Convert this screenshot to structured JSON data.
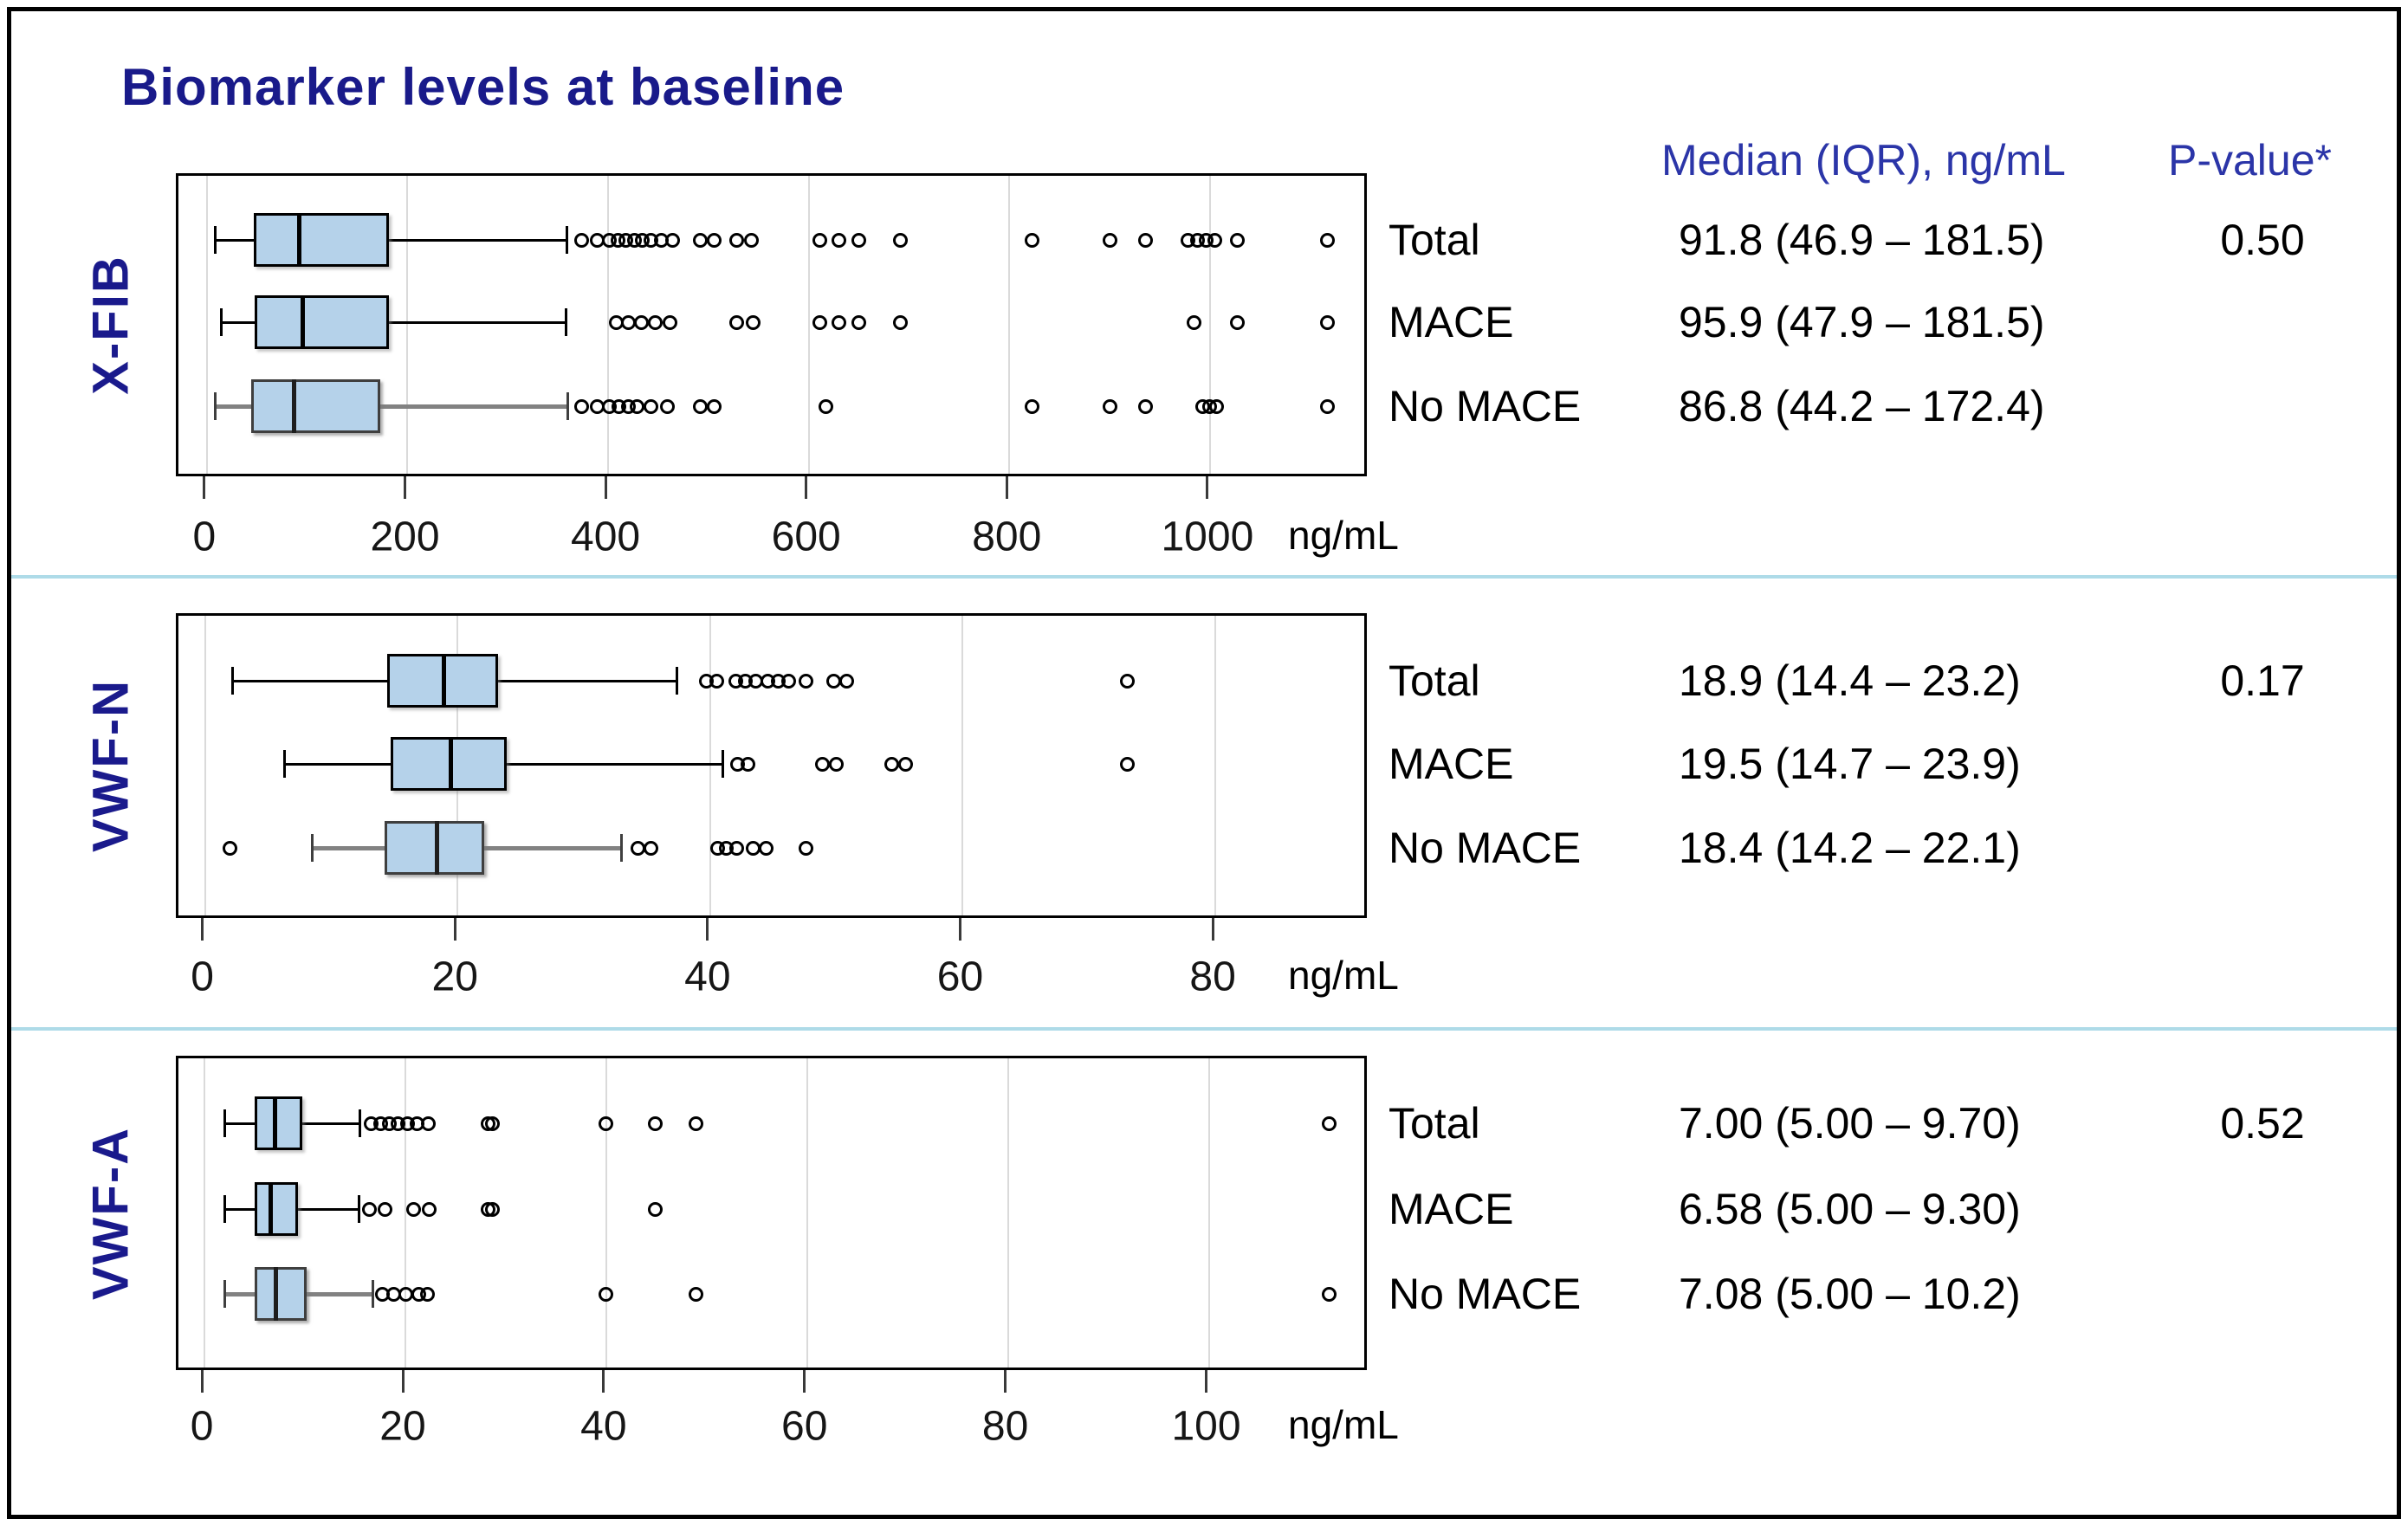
{
  "title": "Biomarker levels at baseline",
  "columns": {
    "median_header": "Median (IQR), ng/mL",
    "pvalue_header": "P-value*"
  },
  "colors": {
    "title_navy": "#191a8a",
    "header_blue": "#2b35a8",
    "box_fill": "#b5d2ea",
    "gray_series": "#828282",
    "gridline": "#dadada",
    "separator_blue": "#aedbe8"
  },
  "chart_data": [
    {
      "type": "boxplot",
      "orientation": "horizontal",
      "label": "X-FIB",
      "unit": "ng/mL",
      "pvalue": "0.50",
      "axis": {
        "min": -28.4,
        "max": 1159,
        "ticks": [
          0,
          200,
          400,
          600,
          800,
          1000
        ],
        "grid": true
      },
      "rows": [
        {
          "group": "Total",
          "median_iqr": "91.8 (46.9 – 181.5)",
          "stats": {
            "whisker_low": 8,
            "q1": 46.9,
            "median": 91.8,
            "q3": 181.5,
            "whisker_high": 359
          },
          "outliers": [
            374,
            389,
            401,
            410,
            418,
            426,
            434,
            443,
            453,
            464,
            492,
            506,
            528,
            543,
            611,
            630,
            650,
            691,
            823,
            900,
            936,
            978,
            988,
            996,
            1005,
            1027,
            1117
          ],
          "style": "black"
        },
        {
          "group": "MACE",
          "median_iqr": "95.9 (47.9 – 181.5)",
          "stats": {
            "whisker_low": 14,
            "q1": 47.9,
            "median": 95.9,
            "q3": 181.5,
            "whisker_high": 358
          },
          "outliers": [
            408,
            420,
            433,
            447,
            462,
            528,
            545,
            611,
            630,
            650,
            691,
            984,
            1027,
            1117
          ],
          "style": "black"
        },
        {
          "group": "No MACE",
          "median_iqr": "86.8 (44.2 – 172.4)",
          "stats": {
            "whisker_low": 8,
            "q1": 44.2,
            "median": 86.8,
            "q3": 172.4,
            "whisker_high": 360
          },
          "outliers": [
            374,
            389,
            401,
            411,
            420,
            429,
            443,
            459,
            492,
            506,
            617,
            823,
            900,
            936,
            993,
            1000,
            1007,
            1117
          ],
          "style": "gray"
        }
      ]
    },
    {
      "type": "boxplot",
      "orientation": "horizontal",
      "label": "VWF-N",
      "unit": "ng/mL",
      "pvalue": "0.17",
      "axis": {
        "min": -2.1,
        "max": 92.2,
        "ticks": [
          0,
          20,
          40,
          60,
          80
        ],
        "grid": true
      },
      "rows": [
        {
          "group": "Total",
          "median_iqr": "18.9 (14.4 – 23.2)",
          "stats": {
            "whisker_low": 2.2,
            "q1": 14.4,
            "median": 18.9,
            "q3": 23.2,
            "whisker_high": 37.4
          },
          "outliers": [
            39.7,
            40.5,
            42.0,
            42.8,
            43.6,
            44.6,
            45.4,
            46.2,
            47.6,
            49.8,
            50.8,
            73
          ],
          "style": "black"
        },
        {
          "group": "MACE",
          "median_iqr": "19.5 (14.7 – 23.9)",
          "stats": {
            "whisker_low": 6.3,
            "q1": 14.7,
            "median": 19.5,
            "q3": 23.9,
            "whisker_high": 41.0
          },
          "outliers": [
            42.2,
            43.0,
            48.9,
            50.0,
            54.4,
            55.5,
            73
          ],
          "style": "black"
        },
        {
          "group": "No MACE",
          "median_iqr": "18.4 (14.2 – 22.1)",
          "stats": {
            "whisker_low": 8.5,
            "q1": 14.2,
            "median": 18.4,
            "q3": 22.1,
            "whisker_high": 33.0
          },
          "outliers": [
            2.0,
            34.3,
            35.3,
            40.6,
            41.3,
            42.1,
            43.4,
            44.4,
            47.6
          ],
          "style": "gray"
        }
      ]
    },
    {
      "type": "boxplot",
      "orientation": "horizontal",
      "label": "VWF-A",
      "unit": "ng/mL",
      "pvalue": "0.52",
      "axis": {
        "min": -2.6,
        "max": 116,
        "ticks": [
          0,
          20,
          40,
          60,
          80,
          100
        ],
        "grid": true
      },
      "rows": [
        {
          "group": "Total",
          "median_iqr": "7.00 (5.00 – 9.70)",
          "stats": {
            "whisker_low": 2,
            "q1": 5.0,
            "median": 7.0,
            "q3": 9.7,
            "whisker_high": 15.5
          },
          "outliers": [
            16.6,
            17.5,
            18.4,
            19.3,
            20.2,
            21.2,
            22.3,
            28.2,
            28.7,
            40,
            44.9,
            48.9,
            112
          ],
          "style": "black"
        },
        {
          "group": "MACE",
          "median_iqr": "6.58 (5.00 – 9.30)",
          "stats": {
            "whisker_low": 2,
            "q1": 5.0,
            "median": 6.58,
            "q3": 9.3,
            "whisker_high": 15.4
          },
          "outliers": [
            16.4,
            18.0,
            20.8,
            22.4,
            28.2,
            28.7,
            44.9
          ],
          "style": "black"
        },
        {
          "group": "No MACE",
          "median_iqr": "7.08 (5.00 – 10.2)",
          "stats": {
            "whisker_low": 2,
            "q1": 5.0,
            "median": 7.08,
            "q3": 10.2,
            "whisker_high": 16.8
          },
          "outliers": [
            17.7,
            18.8,
            20.0,
            21.3,
            22.2,
            40,
            48.9,
            112
          ],
          "style": "gray"
        }
      ]
    }
  ]
}
